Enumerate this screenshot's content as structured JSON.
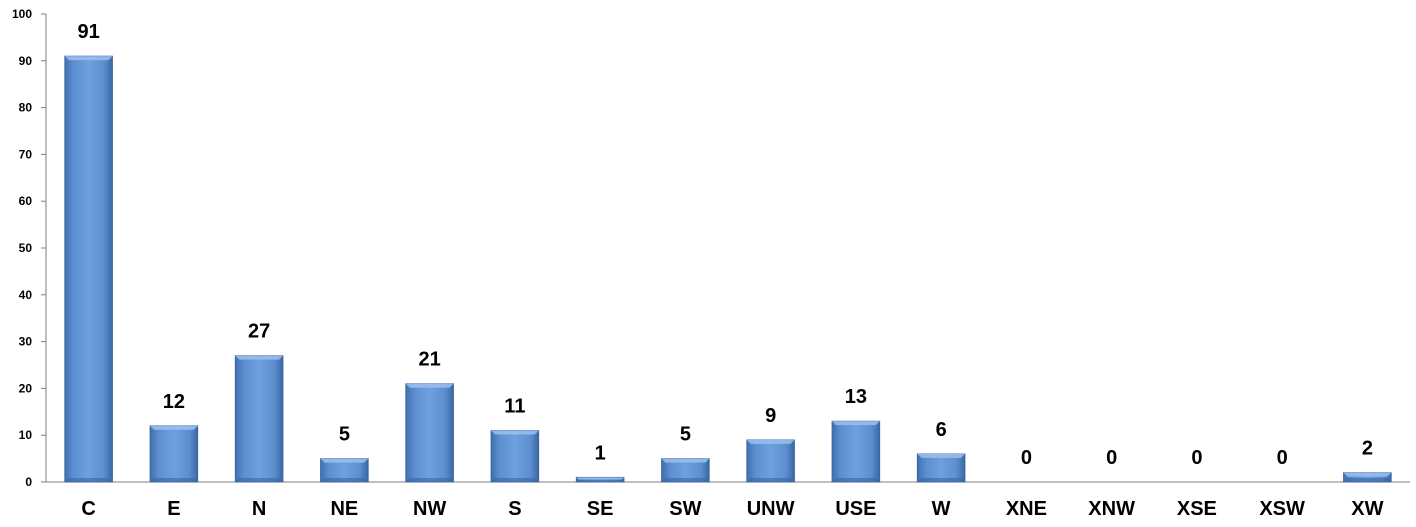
{
  "chart_data": {
    "type": "bar",
    "title": "",
    "xlabel": "",
    "ylabel": "",
    "categories": [
      "C",
      "E",
      "N",
      "NE",
      "NW",
      "S",
      "SE",
      "SW",
      "UNW",
      "USE",
      "W",
      "XNE",
      "XNW",
      "XSE",
      "XSW",
      "XW"
    ],
    "values": [
      91,
      12,
      27,
      5,
      21,
      11,
      1,
      5,
      9,
      13,
      6,
      0,
      0,
      0,
      0,
      2
    ],
    "ylim": [
      0,
      100
    ],
    "yticks": [
      "0",
      "10",
      "20",
      "30",
      "40",
      "50",
      "60",
      "70",
      "80",
      "90",
      "100"
    ],
    "data_labels": [
      "91",
      "12",
      "27",
      "5",
      "21",
      "11",
      "1",
      "5",
      "9",
      "13",
      "6",
      "0",
      "0",
      "0",
      "0",
      "2"
    ],
    "grid": false,
    "legend": "none",
    "bar_color": "#4f81bd"
  }
}
